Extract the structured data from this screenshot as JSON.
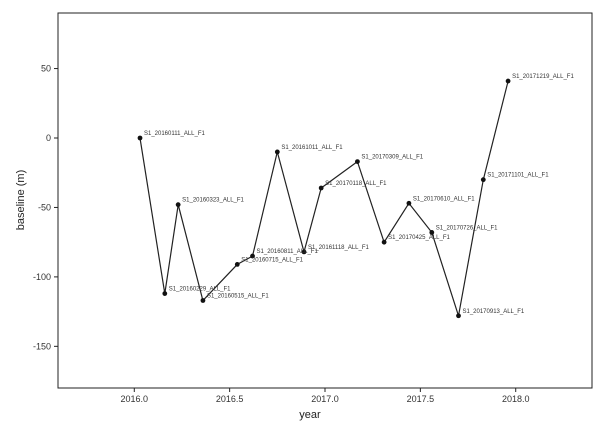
{
  "chart_data": {
    "type": "line",
    "xlabel": "year",
    "ylabel": "baseline (m)",
    "xlim": [
      2015.6,
      2018.4
    ],
    "ylim": [
      -180,
      90
    ],
    "x_ticks": [
      {
        "value": 2016.0,
        "label": "2016.0"
      },
      {
        "value": 2016.5,
        "label": "2016.5"
      },
      {
        "value": 2017.0,
        "label": "2017.0"
      },
      {
        "value": 2017.5,
        "label": "2017.5"
      },
      {
        "value": 2018.0,
        "label": "2018.0"
      }
    ],
    "y_ticks": [
      {
        "value": 50,
        "label": "50"
      },
      {
        "value": 0,
        "label": "0"
      },
      {
        "value": -50,
        "label": "-50"
      },
      {
        "value": -100,
        "label": "-100"
      },
      {
        "value": -150,
        "label": "-150"
      }
    ],
    "points": [
      {
        "x": 2016.03,
        "y": 0,
        "label": "S1_20160111_ALL_F1"
      },
      {
        "x": 2016.16,
        "y": -112,
        "label": "S1_20160229_ALL_F1"
      },
      {
        "x": 2016.23,
        "y": -48,
        "label": "S1_20160323_ALL_F1"
      },
      {
        "x": 2016.36,
        "y": -117,
        "label": "S1_20160515_ALL_F1"
      },
      {
        "x": 2016.54,
        "y": -91,
        "label": "S1_20160715_ALL_F1"
      },
      {
        "x": 2016.62,
        "y": -85,
        "label": "S1_20160811_ALL_F1"
      },
      {
        "x": 2016.75,
        "y": -10,
        "label": "S1_20161011_ALL_F1"
      },
      {
        "x": 2016.89,
        "y": -82,
        "label": "S1_20161118_ALL_F1"
      },
      {
        "x": 2016.98,
        "y": -36,
        "label": "S1_20170118_ALL_F1"
      },
      {
        "x": 2017.17,
        "y": -17,
        "label": "S1_20170309_ALL_F1"
      },
      {
        "x": 2017.31,
        "y": -75,
        "label": "S1_20170425_ALL_F1"
      },
      {
        "x": 2017.44,
        "y": -47,
        "label": "S1_20170610_ALL_F1"
      },
      {
        "x": 2017.56,
        "y": -68,
        "label": "S1_20170726_ALL_F1"
      },
      {
        "x": 2017.7,
        "y": -128,
        "label": "S1_20170913_ALL_F1"
      },
      {
        "x": 2017.83,
        "y": -30,
        "label": "S1_20171101_ALL_F1"
      },
      {
        "x": 2017.96,
        "y": 41,
        "label": "S1_20171219_ALL_F1"
      }
    ],
    "line_color": "#222222",
    "marker_color": "#111111",
    "grid": false,
    "watermark_color": "#cfcfcf"
  }
}
